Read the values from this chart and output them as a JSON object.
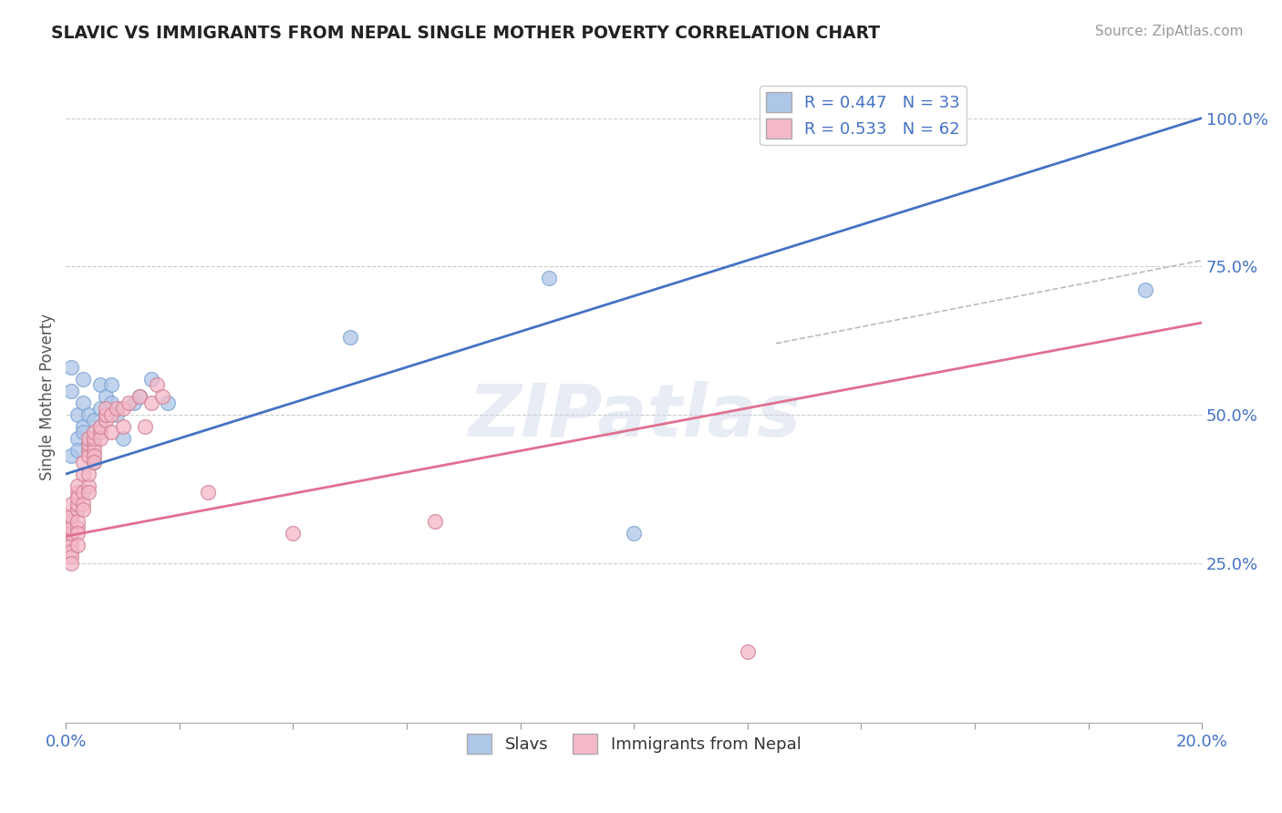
{
  "title": "SLAVIC VS IMMIGRANTS FROM NEPAL SINGLE MOTHER POVERTY CORRELATION CHART",
  "source": "Source: ZipAtlas.com",
  "ylabel": "Single Mother Poverty",
  "y_tick_labels": [
    "25.0%",
    "50.0%",
    "75.0%",
    "100.0%"
  ],
  "y_tick_values": [
    0.25,
    0.5,
    0.75,
    1.0
  ],
  "xlim": [
    0.0,
    0.2
  ],
  "ylim": [
    -0.02,
    1.08
  ],
  "legend_entries": [
    {
      "label": "R = 0.447   N = 33",
      "color": "#aec6e8"
    },
    {
      "label": "R = 0.533   N = 62",
      "color": "#f4b8c8"
    }
  ],
  "legend_bottom": [
    "Slavs",
    "Immigrants from Nepal"
  ],
  "slavs_color": "#aec6e8",
  "nepal_color": "#f4b8c8",
  "slavs_line_color": "#4472c4",
  "nepal_line_color": "#e07090",
  "background_color": "#ffffff",
  "watermark": "ZIPatlas",
  "slavs_scatter": [
    [
      0.001,
      0.43
    ],
    [
      0.001,
      0.58
    ],
    [
      0.001,
      0.54
    ],
    [
      0.002,
      0.5
    ],
    [
      0.002,
      0.46
    ],
    [
      0.002,
      0.44
    ],
    [
      0.003,
      0.52
    ],
    [
      0.003,
      0.48
    ],
    [
      0.003,
      0.56
    ],
    [
      0.003,
      0.47
    ],
    [
      0.004,
      0.45
    ],
    [
      0.004,
      0.5
    ],
    [
      0.004,
      0.44
    ],
    [
      0.005,
      0.49
    ],
    [
      0.005,
      0.42
    ],
    [
      0.005,
      0.46
    ],
    [
      0.006,
      0.55
    ],
    [
      0.006,
      0.48
    ],
    [
      0.006,
      0.51
    ],
    [
      0.007,
      0.5
    ],
    [
      0.007,
      0.53
    ],
    [
      0.008,
      0.55
    ],
    [
      0.008,
      0.52
    ],
    [
      0.009,
      0.5
    ],
    [
      0.01,
      0.46
    ],
    [
      0.012,
      0.52
    ],
    [
      0.013,
      0.53
    ],
    [
      0.015,
      0.56
    ],
    [
      0.018,
      0.52
    ],
    [
      0.05,
      0.63
    ],
    [
      0.085,
      0.73
    ],
    [
      0.1,
      0.3
    ],
    [
      0.19,
      0.71
    ]
  ],
  "nepal_scatter": [
    [
      0.001,
      0.3
    ],
    [
      0.001,
      0.33
    ],
    [
      0.001,
      0.31
    ],
    [
      0.001,
      0.29
    ],
    [
      0.001,
      0.28
    ],
    [
      0.001,
      0.27
    ],
    [
      0.001,
      0.32
    ],
    [
      0.001,
      0.3
    ],
    [
      0.001,
      0.31
    ],
    [
      0.001,
      0.33
    ],
    [
      0.001,
      0.35
    ],
    [
      0.001,
      0.26
    ],
    [
      0.001,
      0.25
    ],
    [
      0.002,
      0.31
    ],
    [
      0.002,
      0.34
    ],
    [
      0.002,
      0.32
    ],
    [
      0.002,
      0.3
    ],
    [
      0.002,
      0.28
    ],
    [
      0.002,
      0.35
    ],
    [
      0.002,
      0.37
    ],
    [
      0.002,
      0.36
    ],
    [
      0.002,
      0.38
    ],
    [
      0.003,
      0.37
    ],
    [
      0.003,
      0.35
    ],
    [
      0.003,
      0.34
    ],
    [
      0.003,
      0.4
    ],
    [
      0.003,
      0.42
    ],
    [
      0.004,
      0.38
    ],
    [
      0.004,
      0.4
    ],
    [
      0.004,
      0.37
    ],
    [
      0.004,
      0.44
    ],
    [
      0.004,
      0.43
    ],
    [
      0.004,
      0.45
    ],
    [
      0.004,
      0.46
    ],
    [
      0.005,
      0.45
    ],
    [
      0.005,
      0.44
    ],
    [
      0.005,
      0.43
    ],
    [
      0.005,
      0.46
    ],
    [
      0.005,
      0.42
    ],
    [
      0.005,
      0.47
    ],
    [
      0.006,
      0.47
    ],
    [
      0.006,
      0.46
    ],
    [
      0.006,
      0.48
    ],
    [
      0.007,
      0.5
    ],
    [
      0.007,
      0.49
    ],
    [
      0.007,
      0.5
    ],
    [
      0.007,
      0.51
    ],
    [
      0.008,
      0.47
    ],
    [
      0.008,
      0.5
    ],
    [
      0.009,
      0.51
    ],
    [
      0.01,
      0.51
    ],
    [
      0.01,
      0.48
    ],
    [
      0.011,
      0.52
    ],
    [
      0.013,
      0.53
    ],
    [
      0.014,
      0.48
    ],
    [
      0.015,
      0.52
    ],
    [
      0.016,
      0.55
    ],
    [
      0.017,
      0.53
    ],
    [
      0.025,
      0.37
    ],
    [
      0.04,
      0.3
    ],
    [
      0.065,
      0.32
    ],
    [
      0.12,
      0.1
    ]
  ],
  "slavs_line": [
    [
      0.0,
      0.4
    ],
    [
      0.2,
      1.0
    ]
  ],
  "nepal_line": [
    [
      0.0,
      0.295
    ],
    [
      0.2,
      0.655
    ]
  ],
  "dashed_line": [
    [
      0.125,
      0.62
    ],
    [
      0.2,
      0.76
    ]
  ]
}
